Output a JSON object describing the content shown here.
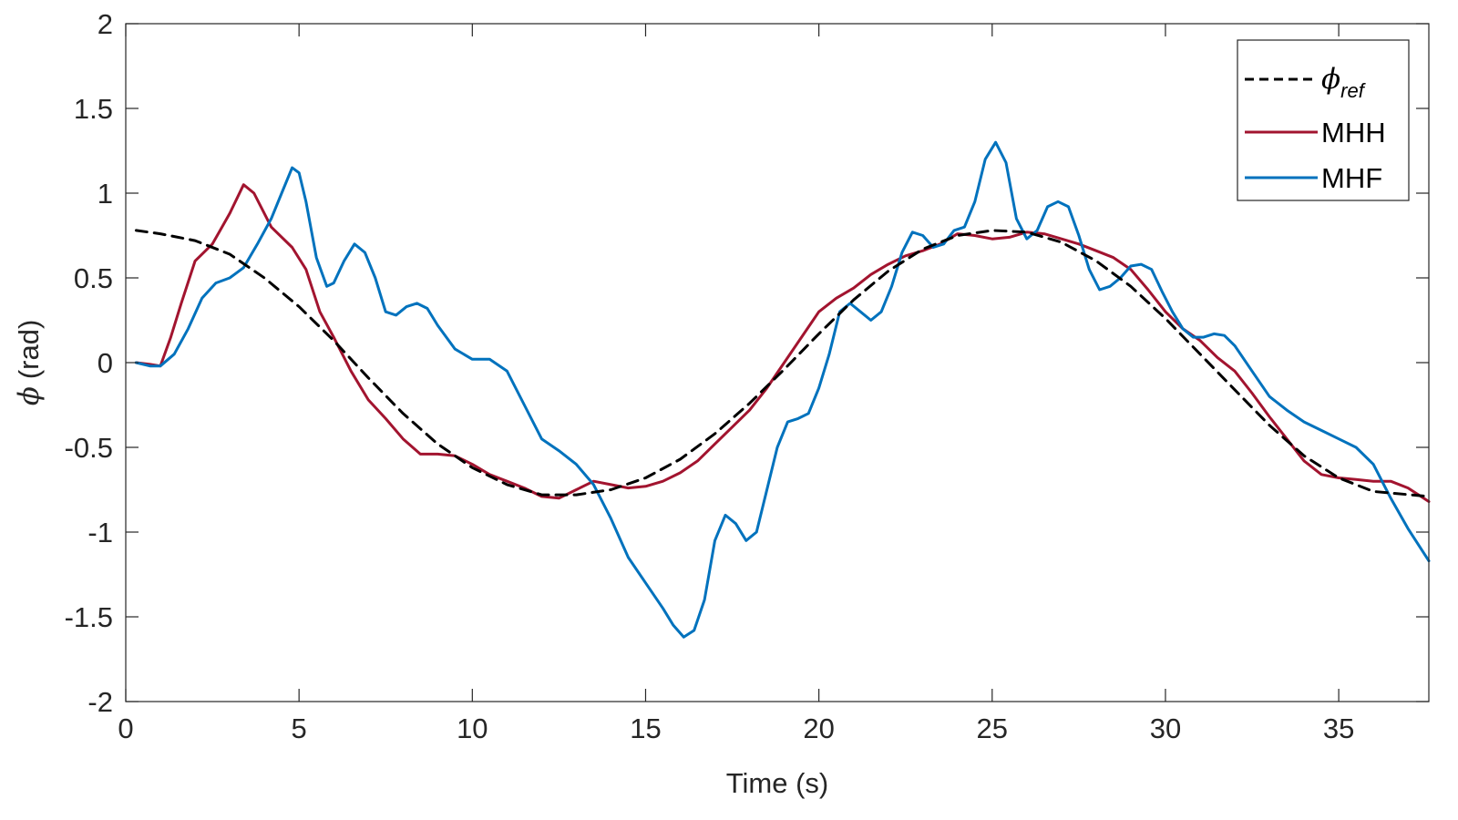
{
  "chart_data": {
    "type": "line",
    "title": "",
    "xlabel": "Time (s)",
    "ylabel_symbol": "ϕ",
    "ylabel_unit": "(rad)",
    "xlim": [
      0,
      37.6
    ],
    "ylim": [
      -2,
      2
    ],
    "xticks": [
      0,
      5,
      10,
      15,
      20,
      25,
      30,
      35
    ],
    "yticks": [
      -2,
      -1.5,
      -1,
      -0.5,
      0,
      0.5,
      1,
      1.5,
      2
    ],
    "xtick_labels": [
      "0",
      "5",
      "10",
      "15",
      "20",
      "25",
      "30",
      "35"
    ],
    "ytick_labels": [
      "-2",
      "-1.5",
      "-1",
      "-0.5",
      "0",
      "0.5",
      "1",
      "1.5",
      "2"
    ],
    "grid": false,
    "legend_position": "top-right",
    "series": [
      {
        "name": "ϕ",
        "name_subscript": "ref",
        "color": "#000000",
        "style": "dashed",
        "x": [
          0.3,
          1,
          2,
          3,
          4,
          5,
          6,
          7,
          8,
          9,
          10,
          11,
          12,
          13,
          14,
          15,
          16,
          17,
          18,
          19,
          20,
          21,
          22,
          23,
          24,
          25,
          26,
          27,
          28,
          29,
          30,
          31,
          32,
          33,
          34,
          35,
          36,
          37.6
        ],
        "y": [
          0.78,
          0.76,
          0.72,
          0.64,
          0.5,
          0.33,
          0.13,
          -0.09,
          -0.3,
          -0.48,
          -0.62,
          -0.72,
          -0.78,
          -0.78,
          -0.75,
          -0.68,
          -0.57,
          -0.42,
          -0.24,
          -0.04,
          0.17,
          0.37,
          0.54,
          0.67,
          0.75,
          0.78,
          0.77,
          0.71,
          0.6,
          0.45,
          0.26,
          0.05,
          -0.16,
          -0.37,
          -0.55,
          -0.68,
          -0.76,
          -0.79
        ]
      },
      {
        "name": "MHH",
        "color": "#A2142F",
        "style": "solid",
        "x": [
          0.3,
          0.7,
          1.0,
          1.3,
          1.6,
          2.0,
          2.5,
          3.0,
          3.4,
          3.7,
          4.2,
          4.8,
          5.2,
          5.6,
          6.0,
          6.5,
          7.0,
          7.5,
          8.0,
          8.5,
          9.0,
          9.5,
          10.0,
          10.5,
          11.0,
          11.5,
          12.0,
          12.5,
          13.0,
          13.5,
          14.0,
          14.5,
          15.0,
          15.5,
          16.0,
          16.5,
          17.0,
          17.5,
          18.0,
          18.5,
          19.0,
          19.5,
          20.0,
          20.5,
          21.0,
          21.5,
          22.0,
          22.5,
          23.0,
          23.5,
          24.0,
          24.5,
          25.0,
          25.5,
          26.0,
          26.5,
          27.0,
          27.5,
          28.0,
          28.5,
          29.0,
          29.5,
          30.0,
          30.5,
          31.0,
          31.5,
          32.0,
          32.5,
          33.0,
          33.5,
          34.0,
          34.5,
          35.0,
          35.5,
          36.0,
          36.5,
          37.0,
          37.6
        ],
        "y": [
          0.0,
          -0.01,
          -0.02,
          0.15,
          0.35,
          0.6,
          0.7,
          0.88,
          1.05,
          1.0,
          0.8,
          0.68,
          0.55,
          0.3,
          0.15,
          -0.05,
          -0.22,
          -0.33,
          -0.45,
          -0.54,
          -0.54,
          -0.55,
          -0.6,
          -0.66,
          -0.7,
          -0.74,
          -0.79,
          -0.8,
          -0.75,
          -0.7,
          -0.72,
          -0.74,
          -0.73,
          -0.7,
          -0.65,
          -0.58,
          -0.48,
          -0.38,
          -0.28,
          -0.15,
          0.0,
          0.15,
          0.3,
          0.38,
          0.44,
          0.52,
          0.58,
          0.63,
          0.66,
          0.7,
          0.76,
          0.75,
          0.73,
          0.74,
          0.77,
          0.76,
          0.73,
          0.7,
          0.66,
          0.62,
          0.55,
          0.43,
          0.3,
          0.2,
          0.13,
          0.03,
          -0.05,
          -0.18,
          -0.32,
          -0.45,
          -0.58,
          -0.66,
          -0.68,
          -0.69,
          -0.7,
          -0.7,
          -0.74,
          -0.82
        ]
      },
      {
        "name": "MHF",
        "color": "#0072BD",
        "style": "solid",
        "x": [
          0.3,
          0.7,
          1.0,
          1.4,
          1.8,
          2.2,
          2.6,
          3.0,
          3.4,
          3.8,
          4.2,
          4.5,
          4.8,
          5.0,
          5.2,
          5.5,
          5.8,
          6.0,
          6.3,
          6.6,
          6.9,
          7.2,
          7.5,
          7.8,
          8.1,
          8.4,
          8.7,
          9.0,
          9.5,
          10.0,
          10.5,
          11.0,
          11.5,
          12.0,
          12.5,
          13.0,
          13.5,
          14.0,
          14.5,
          15.0,
          15.5,
          15.8,
          16.1,
          16.4,
          16.7,
          17.0,
          17.3,
          17.6,
          17.9,
          18.2,
          18.5,
          18.8,
          19.1,
          19.4,
          19.7,
          20.0,
          20.3,
          20.6,
          20.9,
          21.2,
          21.5,
          21.8,
          22.1,
          22.4,
          22.7,
          23.0,
          23.3,
          23.6,
          23.9,
          24.2,
          24.5,
          24.8,
          25.1,
          25.4,
          25.7,
          26.0,
          26.3,
          26.6,
          26.9,
          27.2,
          27.5,
          27.8,
          28.1,
          28.4,
          28.7,
          29.0,
          29.3,
          29.6,
          29.9,
          30.2,
          30.5,
          30.8,
          31.1,
          31.4,
          31.7,
          32.0,
          32.5,
          33.0,
          33.5,
          34.0,
          34.5,
          35.0,
          35.5,
          36.0,
          36.5,
          37.0,
          37.6
        ],
        "y": [
          0.0,
          -0.02,
          -0.02,
          0.05,
          0.2,
          0.38,
          0.47,
          0.5,
          0.56,
          0.7,
          0.85,
          1.0,
          1.15,
          1.12,
          0.95,
          0.62,
          0.45,
          0.47,
          0.6,
          0.7,
          0.65,
          0.5,
          0.3,
          0.28,
          0.33,
          0.35,
          0.32,
          0.22,
          0.08,
          0.02,
          0.02,
          -0.05,
          -0.25,
          -0.45,
          -0.52,
          -0.6,
          -0.72,
          -0.92,
          -1.15,
          -1.3,
          -1.45,
          -1.55,
          -1.62,
          -1.58,
          -1.4,
          -1.05,
          -0.9,
          -0.95,
          -1.05,
          -1.0,
          -0.75,
          -0.5,
          -0.35,
          -0.33,
          -0.3,
          -0.15,
          0.05,
          0.3,
          0.35,
          0.3,
          0.25,
          0.3,
          0.45,
          0.65,
          0.77,
          0.75,
          0.68,
          0.7,
          0.78,
          0.8,
          0.95,
          1.2,
          1.3,
          1.18,
          0.85,
          0.73,
          0.78,
          0.92,
          0.95,
          0.92,
          0.75,
          0.55,
          0.43,
          0.45,
          0.5,
          0.57,
          0.58,
          0.55,
          0.42,
          0.3,
          0.2,
          0.15,
          0.15,
          0.17,
          0.16,
          0.1,
          -0.05,
          -0.2,
          -0.28,
          -0.35,
          -0.4,
          -0.45,
          -0.5,
          -0.6,
          -0.8,
          -0.98,
          -1.17
        ]
      }
    ]
  }
}
